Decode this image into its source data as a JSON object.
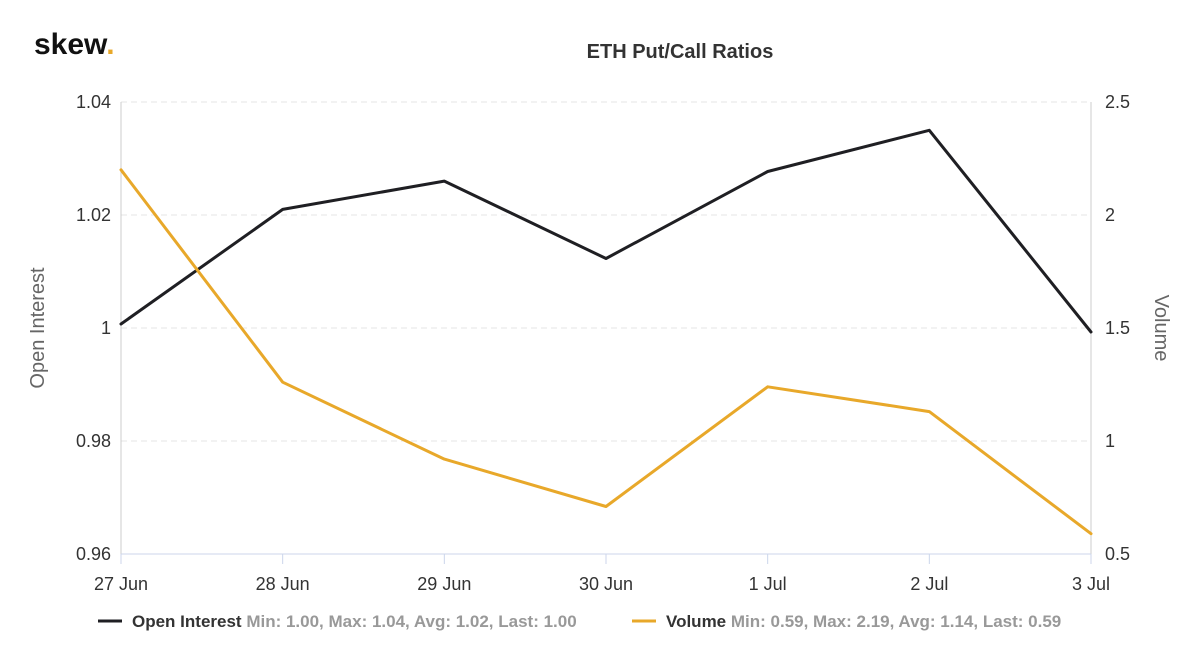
{
  "brand": {
    "name": "skew",
    "dot": "."
  },
  "chart_data": {
    "type": "line",
    "title": "ETH Put/Call Ratios",
    "categories": [
      "27 Jun",
      "28 Jun",
      "29 Jun",
      "30 Jun",
      "1 Jul",
      "2 Jul",
      "3 Jul"
    ],
    "y_left": {
      "label": "Open Interest",
      "min": 0.96,
      "max": 1.04,
      "ticks": [
        "1.04",
        "1.02",
        "1",
        "0.98",
        "0.96"
      ]
    },
    "y_right": {
      "label": "Volume",
      "min": 0.5,
      "max": 2.5,
      "ticks": [
        "2.5",
        "2",
        "1.5",
        "1",
        "0.5"
      ]
    },
    "grid": true,
    "legend_position": "bottom",
    "series": [
      {
        "name": "Open Interest",
        "axis": "left",
        "color": "#1f1f23",
        "values": [
          1.0007,
          1.021,
          1.026,
          1.0123,
          1.0277,
          1.035,
          0.9993
        ],
        "stats": "Min: 1.00, Max: 1.04, Avg: 1.02, Last: 1.00"
      },
      {
        "name": "Volume",
        "axis": "right",
        "color": "#e8a82a",
        "values": [
          2.2,
          1.26,
          0.92,
          0.71,
          1.24,
          1.13,
          0.59
        ],
        "stats": "Min: 0.59, Max: 2.19, Avg: 1.14, Last: 0.59"
      }
    ]
  }
}
